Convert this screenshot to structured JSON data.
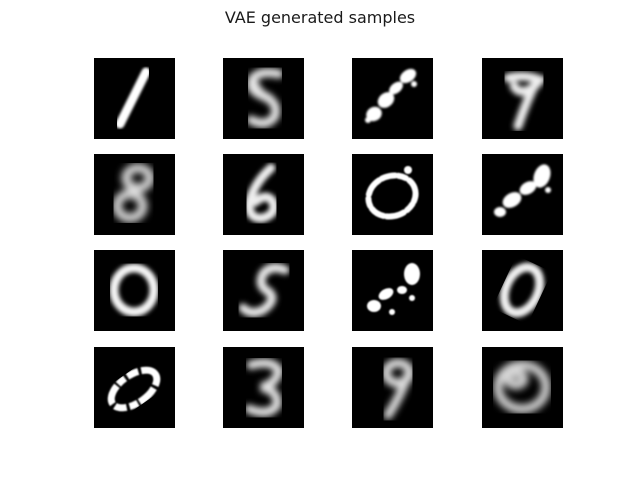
{
  "figure": {
    "title": "VAE generated samples"
  },
  "grid": {
    "rows": 4,
    "cols": 4,
    "samples": [
      {
        "depicts": "digit 1"
      },
      {
        "depicts": "blurry digit 5/8"
      },
      {
        "depicts": "fragmented diagonal stroke"
      },
      {
        "depicts": "digit 7"
      },
      {
        "depicts": "blurry digit 8"
      },
      {
        "depicts": "digit 6"
      },
      {
        "depicts": "fragmented ring"
      },
      {
        "depicts": "fragmented diagonal blob"
      },
      {
        "depicts": "digit 0"
      },
      {
        "depicts": "digit 5"
      },
      {
        "depicts": "fragmented blob"
      },
      {
        "depicts": "digit 0 slanted"
      },
      {
        "depicts": "fragmented digit 0"
      },
      {
        "depicts": "digit 3/5"
      },
      {
        "depicts": "blurry digit 9"
      },
      {
        "depicts": "blurry digit 6/8"
      }
    ]
  },
  "colors": {
    "tile_background": "#000000",
    "stroke": "#ffffff",
    "page_background": "#ffffff"
  }
}
